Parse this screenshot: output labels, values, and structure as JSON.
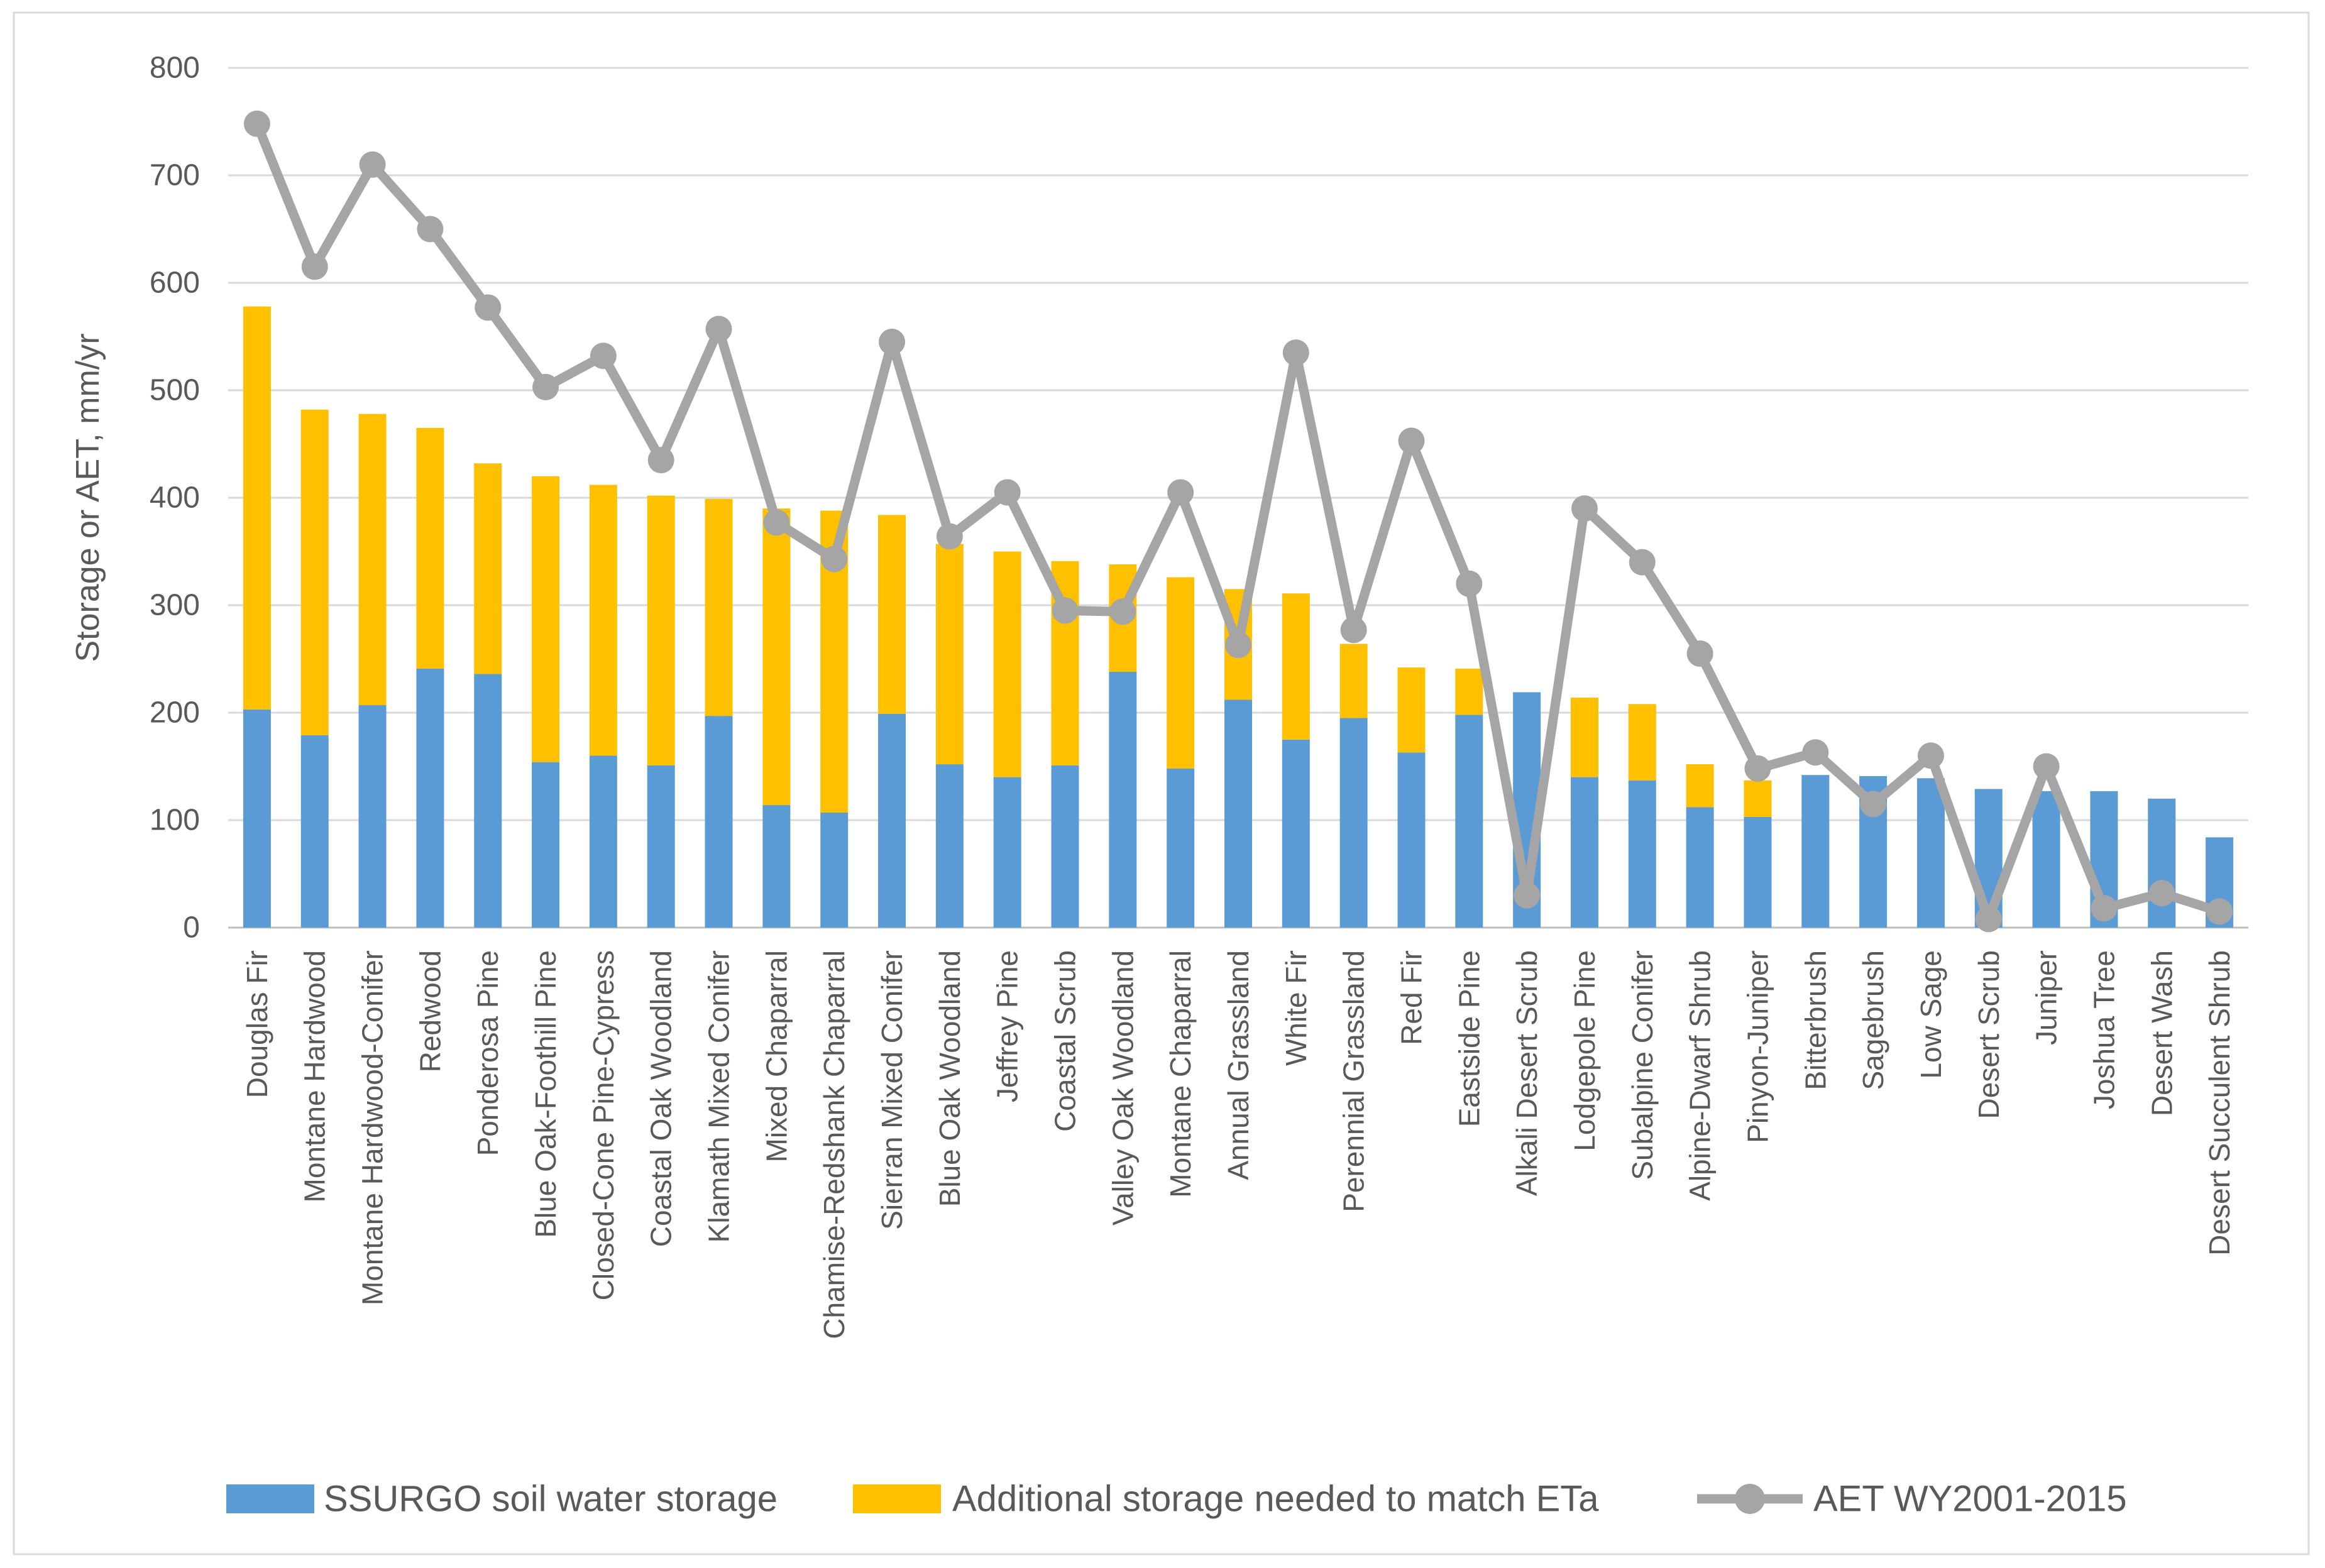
{
  "chart_data": {
    "type": "bar",
    "subtype": "stacked-bar-with-line-overlay",
    "title": "",
    "xlabel": "",
    "ylabel": "Storage or AET, mm/yr",
    "ylim": [
      0,
      800
    ],
    "ytick_interval": 100,
    "yticks": [
      0,
      100,
      200,
      300,
      400,
      500,
      600,
      700,
      800
    ],
    "grid": true,
    "legend_position": "bottom",
    "categories": [
      "Douglas Fir",
      "Montane Hardwood",
      "Montane Hardwood-Conifer",
      "Redwood",
      "Ponderosa Pine",
      "Blue Oak-Foothill Pine",
      "Closed-Cone Pine-Cypress",
      "Coastal Oak Woodland",
      "Klamath Mixed Conifer",
      "Mixed Chaparral",
      "Chamise-Redshank Chaparral",
      "Sierran Mixed Conifer",
      "Blue Oak Woodland",
      "Jeffrey Pine",
      "Coastal Scrub",
      "Valley Oak Woodland",
      "Montane Chaparral",
      "Annual Grassland",
      "White Fir",
      "Perennial Grassland",
      "Red Fir",
      "Eastside Pine",
      "Alkali Desert Scrub",
      "Lodgepole Pine",
      "Subalpine Conifer",
      "Alpine-Dwarf Shrub",
      "Pinyon-Juniper",
      "Bitterbrush",
      "Sagebrush",
      "Low Sage",
      "Desert Scrub",
      "Juniper",
      "Joshua Tree",
      "Desert Wash",
      "Desert Succulent Shrub"
    ],
    "series": [
      {
        "name": "SSURGO soil water storage",
        "type": "bar",
        "stack": "storage",
        "color": "#5B9BD5",
        "values": [
          203,
          179,
          207,
          241,
          236,
          154,
          160,
          151,
          197,
          114,
          107,
          199,
          152,
          140,
          151,
          238,
          148,
          212,
          175,
          195,
          163,
          198,
          219,
          140,
          137,
          112,
          103,
          142,
          141,
          139,
          129,
          127,
          127,
          120,
          84
        ]
      },
      {
        "name": "Additional storage needed to match ETa",
        "type": "bar",
        "stack": "storage",
        "color": "#FFC000",
        "values": [
          375,
          303,
          271,
          224,
          196,
          266,
          252,
          251,
          202,
          276,
          281,
          185,
          205,
          210,
          190,
          100,
          178,
          103,
          136,
          69,
          79,
          43,
          0,
          74,
          71,
          40,
          34,
          0,
          0,
          0,
          0,
          0,
          0,
          0,
          0
        ]
      },
      {
        "name": "AET WY2001-2015",
        "type": "line",
        "marker": "circle",
        "color": "#A5A5A5",
        "values": [
          748,
          615,
          710,
          650,
          577,
          503,
          532,
          435,
          557,
          377,
          343,
          545,
          364,
          405,
          295,
          294,
          405,
          263,
          535,
          277,
          453,
          320,
          30,
          390,
          340,
          255,
          148,
          163,
          115,
          160,
          8,
          150,
          18,
          32,
          15
        ]
      }
    ]
  },
  "colors": {
    "background": "#FFFFFF",
    "frame_border": "#D9D9D9",
    "gridline": "#D9D9D9",
    "axis_line": "#BFBFBF",
    "text": "#595959"
  }
}
